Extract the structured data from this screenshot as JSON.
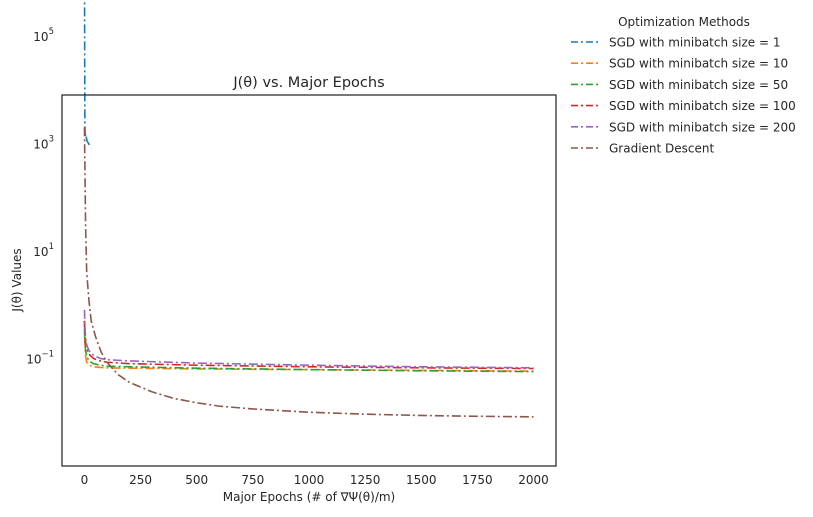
{
  "chart_data": {
    "type": "line",
    "title": "J(θ) vs. Major Epochs",
    "xlabel": "Major Epochs (# of ∇Ψ(θ)/m)",
    "ylabel": "J(θ) Values",
    "xlim": [
      -100,
      2100
    ],
    "ylim_log10": [
      -3.0,
      3.9
    ],
    "yscale": "log",
    "grid": false,
    "legend_title": "Optimization Methods",
    "legend_position": "outside-top-right",
    "x_ticks": [
      0,
      250,
      500,
      750,
      1000,
      1250,
      1500,
      1750,
      2000
    ],
    "y_ticks": [
      {
        "base": "10",
        "exp": "5"
      },
      {
        "base": "10",
        "exp": "3"
      },
      {
        "base": "10",
        "exp": "1"
      },
      {
        "base": "10",
        "exp": "−1"
      }
    ],
    "series": [
      {
        "name": "SGD with minibatch size = 1",
        "color": "#1f77b4",
        "linestyle": "dashdot",
        "x": [
          0,
          1,
          2,
          3,
          5,
          8,
          12,
          18,
          25
        ],
        "y": [
          3000000,
          50000,
          2500,
          1300,
          1500,
          1300,
          1100,
          1000,
          900
        ]
      },
      {
        "name": "SGD with minibatch size = 10",
        "color": "#ff7f0e",
        "linestyle": "dashdot",
        "x": [
          0,
          2,
          5,
          10,
          20,
          40,
          70,
          100,
          200,
          500,
          1000,
          1500,
          2000
        ],
        "y": [
          0.5,
          0.2,
          0.11,
          0.085,
          0.075,
          0.07,
          0.068,
          0.067,
          0.066,
          0.064,
          0.062,
          0.06,
          0.058
        ]
      },
      {
        "name": "SGD with minibatch size = 50",
        "color": "#2ca02c",
        "linestyle": "dashdot",
        "x": [
          0,
          2,
          5,
          10,
          20,
          40,
          70,
          100,
          200,
          500,
          1000,
          1500,
          2000
        ],
        "y": [
          0.35,
          0.2,
          0.14,
          0.11,
          0.09,
          0.08,
          0.075,
          0.072,
          0.07,
          0.066,
          0.062,
          0.059,
          0.057
        ]
      },
      {
        "name": "SGD with minibatch size = 100",
        "color": "#d62728",
        "linestyle": "dashdot",
        "x": [
          0,
          2,
          5,
          10,
          20,
          40,
          70,
          100,
          200,
          500,
          1000,
          1500,
          2000
        ],
        "y": [
          0.5,
          0.3,
          0.2,
          0.15,
          0.12,
          0.1,
          0.09,
          0.085,
          0.08,
          0.075,
          0.07,
          0.067,
          0.065
        ]
      },
      {
        "name": "SGD with minibatch size = 200",
        "color": "#9467bd",
        "linestyle": "dashdot",
        "x": [
          0,
          2,
          5,
          10,
          20,
          40,
          70,
          100,
          200,
          500,
          1000,
          1500,
          2000
        ],
        "y": [
          0.8,
          0.4,
          0.25,
          0.18,
          0.14,
          0.115,
          0.1,
          0.095,
          0.09,
          0.082,
          0.075,
          0.07,
          0.067
        ]
      },
      {
        "name": "Gradient Descent",
        "color": "#8c564b",
        "linestyle": "dashdot",
        "x": [
          0,
          5,
          10,
          20,
          30,
          50,
          75,
          100,
          150,
          200,
          300,
          400,
          500,
          600,
          750,
          1000,
          1250,
          1500,
          1750,
          2000
        ],
        "y": [
          2000,
          30,
          4,
          1.2,
          0.5,
          0.25,
          0.13,
          0.085,
          0.05,
          0.036,
          0.024,
          0.018,
          0.015,
          0.013,
          0.0115,
          0.01,
          0.0092,
          0.0087,
          0.0084,
          0.0082
        ]
      }
    ]
  }
}
